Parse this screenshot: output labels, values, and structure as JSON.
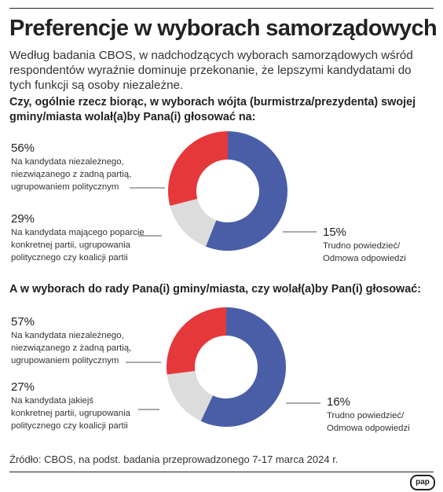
{
  "title": "Preferencje w wyborach samorządowych",
  "intro": "Według badania CBOS, w nadchodzących wyborach samorządowych wśród respondentów wyraźnie dominuje przekonanie, że lepszymi kandydatami do tych funkcji są osoby niezależne.",
  "source": "Źródło: CBOS, na podst. badania przeprowadzonego 7-17 marca 2024 r.",
  "logo": "pap",
  "colors": {
    "independent": "#4a5ea8",
    "party": "#e5383b",
    "unsure": "#dcdcdc"
  },
  "chart_data": [
    {
      "type": "pie",
      "donut": true,
      "question": "Czy, ogólnie rzecz biorąc, w wyborach wójta (burmistrza/prezydenta) swojej gminy/miasta wolał(a)by Pana(i) głosować na:",
      "slices": [
        {
          "pct_label": "56%",
          "value": 56,
          "label": "Na kandydata niezależnego,\nniezwiązanego z żadną partią,\nugrupowaniem politycznym",
          "color": "#4a5ea8"
        },
        {
          "pct_label": "15%",
          "value": 15,
          "label": "Trudno powiedzieć/\nOdmowa odpowiedzi",
          "color": "#dcdcdc"
        },
        {
          "pct_label": "29%",
          "value": 29,
          "label": "Na kandydata mającego poparcie\nkonkretnej partii, ugrupowania\npolitycznego czy koalicji partii",
          "color": "#e5383b"
        }
      ]
    },
    {
      "type": "pie",
      "donut": true,
      "question": "A w wyborach do rady Pana(i) gminy/miasta, czy wolał(a)by Pan(i) głosować:",
      "slices": [
        {
          "pct_label": "57%",
          "value": 57,
          "label": "Na kandydata niezależnego,\nniezwiązanego z żadną partią,\nugrupowaniem politycznym",
          "color": "#4a5ea8"
        },
        {
          "pct_label": "16%",
          "value": 16,
          "label": "Trudno powiedzieć/\nOdmowa odpowiedzi",
          "color": "#dcdcdc"
        },
        {
          "pct_label": "27%",
          "value": 27,
          "label": "Na kandydata jakiejś\nkonkretnej partii, ugrupowania\npolitycznego czy koalicji partii",
          "color": "#e5383b"
        }
      ]
    }
  ]
}
